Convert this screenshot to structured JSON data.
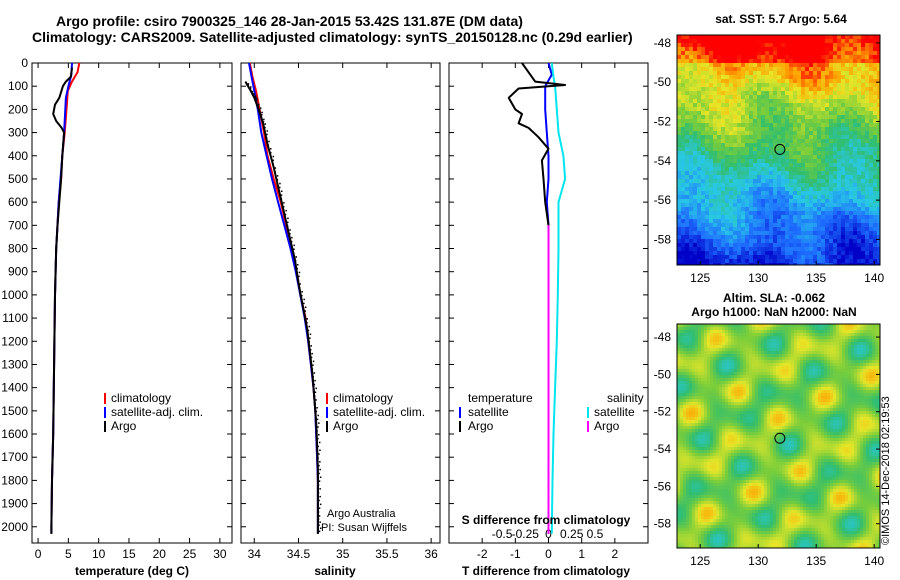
{
  "title": {
    "line1": "Argo profile: csiro 7900325_146 28-Jan-2015 53.42S 131.87E (DM data)",
    "line2": "Climatology: CARS2009. Satellite-adjusted climatology: synTS_20150128.nc (0.29d earlier)"
  },
  "colors": {
    "climatology": "#ff0000",
    "satellite": "#0000ff",
    "argo": "#000000",
    "sat_salinity": "#00e5ee",
    "argo_salinity": "#ff00ff"
  },
  "credits": {
    "line1": "Argo Australia",
    "line2": "PI: Susan Wijffels"
  },
  "watermark": "©IMOS 14-Dec-2018 02:19:53",
  "chart_data": [
    {
      "id": "temperature",
      "type": "line",
      "xlabel": "temperature (deg C)",
      "ylabel": "",
      "xlim": [
        -1,
        32
      ],
      "ylim": [
        2070,
        0
      ],
      "x_ticks": [
        0,
        5,
        10,
        15,
        20,
        25,
        30
      ],
      "y_ticks": [
        0,
        100,
        200,
        300,
        400,
        500,
        600,
        700,
        800,
        900,
        1000,
        1100,
        1200,
        1300,
        1400,
        1500,
        1600,
        1700,
        1800,
        1900,
        2000
      ],
      "legend": [
        "climatology",
        "satellite-adj. clim.",
        "Argo"
      ],
      "series": [
        {
          "name": "climatology",
          "color": "#ff0000",
          "points": [
            [
              6.8,
              0
            ],
            [
              6.5,
              40
            ],
            [
              5.6,
              80
            ],
            [
              4.9,
              120
            ],
            [
              4.7,
              200
            ],
            [
              4.4,
              300
            ],
            [
              4.0,
              400
            ],
            [
              3.8,
              500
            ],
            [
              3.4,
              600
            ],
            [
              3.2,
              700
            ],
            [
              3.0,
              800
            ],
            [
              2.9,
              900
            ],
            [
              2.8,
              1000
            ],
            [
              2.7,
              1200
            ],
            [
              2.6,
              1400
            ],
            [
              2.5,
              1600
            ],
            [
              2.3,
              1800
            ],
            [
              2.2,
              2000
            ],
            [
              2.2,
              2030
            ]
          ]
        },
        {
          "name": "satellite-adj. clim.",
          "color": "#0000ff",
          "points": [
            [
              5.6,
              0
            ],
            [
              5.5,
              50
            ],
            [
              5.0,
              100
            ],
            [
              4.6,
              150
            ],
            [
              4.5,
              200
            ],
            [
              4.3,
              300
            ],
            [
              4.0,
              400
            ],
            [
              3.7,
              500
            ],
            [
              3.4,
              600
            ],
            [
              3.2,
              700
            ],
            [
              3.0,
              800
            ],
            [
              2.9,
              900
            ],
            [
              2.8,
              1000
            ],
            [
              2.7,
              1200
            ],
            [
              2.6,
              1400
            ],
            [
              2.5,
              1600
            ],
            [
              2.3,
              1800
            ],
            [
              2.2,
              2000
            ],
            [
              2.2,
              2030
            ]
          ]
        },
        {
          "name": "Argo",
          "color": "#000000",
          "points": [
            [
              5.6,
              20
            ],
            [
              5.4,
              60
            ],
            [
              4.6,
              80
            ],
            [
              4.1,
              100
            ],
            [
              3.5,
              150
            ],
            [
              2.8,
              180
            ],
            [
              2.5,
              220
            ],
            [
              3.0,
              250
            ],
            [
              3.9,
              280
            ],
            [
              4.3,
              300
            ],
            [
              4.0,
              400
            ],
            [
              3.8,
              500
            ],
            [
              3.5,
              600
            ],
            [
              3.2,
              700
            ],
            [
              3.0,
              800
            ],
            [
              2.9,
              900
            ],
            [
              2.8,
              1000
            ],
            [
              2.7,
              1200
            ],
            [
              2.6,
              1400
            ],
            [
              2.5,
              1600
            ],
            [
              2.3,
              1800
            ],
            [
              2.2,
              2000
            ],
            [
              2.2,
              2030
            ]
          ]
        }
      ]
    },
    {
      "id": "salinity",
      "type": "line",
      "xlabel": "salinity",
      "ylabel": "",
      "xlim": [
        33.85,
        36.1
      ],
      "ylim": [
        2070,
        0
      ],
      "x_ticks": [
        34,
        34.5,
        35,
        35.5,
        36
      ],
      "x_tick_labels": [
        "34",
        "34.5",
        "35",
        "35.5",
        "36"
      ],
      "legend": [
        "climatology",
        "satellite-adj. clim.",
        "Argo"
      ],
      "series": [
        {
          "name": "climatology",
          "color": "#ff0000",
          "points": [
            [
              33.95,
              0
            ],
            [
              33.98,
              60
            ],
            [
              34.02,
              120
            ],
            [
              34.06,
              200
            ],
            [
              34.11,
              300
            ],
            [
              34.15,
              400
            ],
            [
              34.22,
              500
            ],
            [
              34.3,
              600
            ],
            [
              34.36,
              700
            ],
            [
              34.42,
              800
            ],
            [
              34.48,
              900
            ],
            [
              34.52,
              1000
            ],
            [
              34.58,
              1100
            ],
            [
              34.61,
              1200
            ],
            [
              34.64,
              1300
            ],
            [
              34.67,
              1400
            ],
            [
              34.69,
              1500
            ],
            [
              34.7,
              1600
            ],
            [
              34.71,
              1700
            ],
            [
              34.72,
              1800
            ],
            [
              34.72,
              1900
            ],
            [
              34.72,
              2030
            ]
          ]
        },
        {
          "name": "satellite-adj. clim.",
          "color": "#0000ff",
          "points": [
            [
              33.94,
              0
            ],
            [
              33.97,
              60
            ],
            [
              34.0,
              120
            ],
            [
              34.04,
              200
            ],
            [
              34.08,
              300
            ],
            [
              34.14,
              400
            ],
            [
              34.2,
              500
            ],
            [
              34.27,
              600
            ],
            [
              34.34,
              700
            ],
            [
              34.41,
              800
            ],
            [
              34.47,
              900
            ],
            [
              34.52,
              1000
            ],
            [
              34.57,
              1100
            ],
            [
              34.61,
              1200
            ],
            [
              34.64,
              1300
            ],
            [
              34.67,
              1400
            ],
            [
              34.69,
              1500
            ],
            [
              34.7,
              1600
            ],
            [
              34.71,
              1700
            ],
            [
              34.72,
              1800
            ],
            [
              34.72,
              1900
            ],
            [
              34.72,
              2030
            ]
          ]
        },
        {
          "name": "Argo",
          "color": "#000000",
          "points": [
            [
              33.9,
              80
            ],
            [
              33.96,
              120
            ],
            [
              34.0,
              150
            ],
            [
              34.05,
              200
            ],
            [
              34.1,
              260
            ],
            [
              34.15,
              350
            ],
            [
              34.22,
              450
            ],
            [
              34.28,
              550
            ],
            [
              34.34,
              650
            ],
            [
              34.4,
              750
            ],
            [
              34.46,
              850
            ],
            [
              34.5,
              950
            ],
            [
              34.55,
              1050
            ],
            [
              34.6,
              1150
            ],
            [
              34.63,
              1250
            ],
            [
              34.66,
              1350
            ],
            [
              34.68,
              1450
            ],
            [
              34.7,
              1550
            ],
            [
              34.71,
              1650
            ],
            [
              34.72,
              1750
            ],
            [
              34.72,
              1850
            ],
            [
              34.72,
              1950
            ],
            [
              34.72,
              2030
            ]
          ]
        }
      ]
    },
    {
      "id": "difference",
      "type": "line",
      "xlabel": "T difference from climatology",
      "xlabel_top": "S difference from climatology",
      "ylabel": "",
      "xlim": [
        -3,
        3
      ],
      "ylim": [
        2070,
        0
      ],
      "x_ticks": [
        -2,
        -1,
        0,
        1,
        2
      ],
      "x_tick_labels": [
        "-2",
        "-1",
        "0",
        "1",
        "2"
      ],
      "s_ticks": [
        -1.4,
        -0.7,
        0,
        0.7,
        1.4
      ],
      "s_tick_labels": [
        "-0.5",
        "-0.25",
        "0",
        "0.25",
        "0.5"
      ],
      "legend_left_title": "temperature",
      "legend_right_title": "salinity",
      "legend_left": [
        "satellite",
        "Argo"
      ],
      "legend_right": [
        "satellite",
        "Argo"
      ],
      "series": [
        {
          "name": "satellite",
          "color": "#0000ff",
          "points": [
            [
              0.0,
              0
            ],
            [
              0.1,
              50
            ],
            [
              -0.1,
              100
            ],
            [
              -0.1,
              150
            ],
            [
              -0.1,
              200
            ],
            [
              -0.05,
              300
            ],
            [
              0.0,
              400
            ],
            [
              0.0,
              500
            ],
            [
              -0.05,
              600
            ],
            [
              0.0,
              700
            ],
            [
              0.0,
              1000
            ],
            [
              0.0,
              1500
            ],
            [
              0.0,
              2030
            ]
          ]
        },
        {
          "name": "satellite",
          "color": "#00e5ee",
          "points": [
            [
              0.1,
              0
            ],
            [
              0.15,
              60
            ],
            [
              0.2,
              100
            ],
            [
              0.25,
              200
            ],
            [
              0.3,
              300
            ],
            [
              0.45,
              400
            ],
            [
              0.5,
              500
            ],
            [
              0.3,
              600
            ],
            [
              0.3,
              700
            ],
            [
              0.3,
              800
            ],
            [
              0.28,
              1000
            ],
            [
              0.25,
              1200
            ],
            [
              0.2,
              1400
            ],
            [
              0.15,
              1600
            ],
            [
              0.12,
              1800
            ],
            [
              0.1,
              2030
            ]
          ]
        },
        {
          "name": "Argo",
          "color": "#000000",
          "points": [
            [
              -0.8,
              0
            ],
            [
              -0.6,
              40
            ],
            [
              -0.4,
              80
            ],
            [
              0.5,
              95
            ],
            [
              -0.9,
              110
            ],
            [
              -1.2,
              150
            ],
            [
              -1.0,
              200
            ],
            [
              -0.8,
              220
            ],
            [
              -0.9,
              260
            ],
            [
              -0.6,
              280
            ],
            [
              -0.3,
              320
            ],
            [
              0.0,
              370
            ],
            [
              -0.2,
              420
            ],
            [
              -0.15,
              500
            ],
            [
              -0.1,
              600
            ],
            [
              0.0,
              700
            ],
            [
              0.0,
              1000
            ],
            [
              0.0,
              1500
            ],
            [
              0.0,
              2030
            ]
          ]
        },
        {
          "name": "Argo",
          "color": "#ff00ff",
          "points": [
            [
              0.0,
              700
            ],
            [
              0.0,
              2030
            ]
          ]
        }
      ]
    },
    {
      "id": "sst_map",
      "type": "heatmap",
      "title": "sat. SST: 5.7 Argo: 5.64",
      "xlim": [
        123,
        140.5
      ],
      "ylim": [
        -59.3,
        -47.6
      ],
      "x_ticks": [
        125,
        130,
        135,
        140
      ],
      "y_ticks": [
        -48,
        -50,
        -52,
        -54,
        -56,
        -58
      ],
      "marker": [
        131.87,
        -53.42
      ]
    },
    {
      "id": "sla_map",
      "type": "heatmap",
      "title_line1": "Altim. SLA: -0.062",
      "title_line2": "Argo h1000: NaN h2000: NaN",
      "xlim": [
        123,
        140.5
      ],
      "ylim": [
        -59.3,
        -47.3
      ],
      "x_ticks": [
        125,
        130,
        135,
        140
      ],
      "y_ticks": [
        -48,
        -50,
        -52,
        -54,
        -56,
        -58
      ],
      "marker": [
        131.87,
        -53.42
      ]
    }
  ]
}
